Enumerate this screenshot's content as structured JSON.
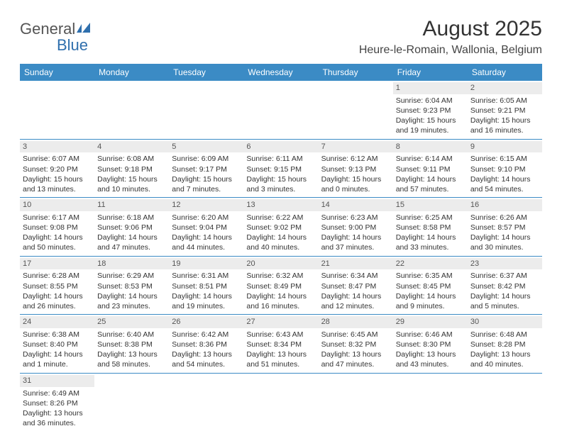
{
  "logo": {
    "text1": "Genera",
    "text2": "l",
    "text3": "Blue"
  },
  "header": {
    "month_title": "August 2025",
    "location": "Heure-le-Romain, Wallonia, Belgium"
  },
  "day_headers": [
    "Sunday",
    "Monday",
    "Tuesday",
    "Wednesday",
    "Thursday",
    "Friday",
    "Saturday"
  ],
  "colors": {
    "header_bg": "#3b8bc5",
    "header_text": "#ffffff",
    "daynum_bg": "#ececec",
    "border": "#3b8bc5"
  },
  "weeks": [
    [
      {
        "blank": true
      },
      {
        "blank": true
      },
      {
        "blank": true
      },
      {
        "blank": true
      },
      {
        "blank": true
      },
      {
        "day": "1",
        "sunrise": "Sunrise: 6:04 AM",
        "sunset": "Sunset: 9:23 PM",
        "daylight1": "Daylight: 15 hours",
        "daylight2": "and 19 minutes."
      },
      {
        "day": "2",
        "sunrise": "Sunrise: 6:05 AM",
        "sunset": "Sunset: 9:21 PM",
        "daylight1": "Daylight: 15 hours",
        "daylight2": "and 16 minutes."
      }
    ],
    [
      {
        "day": "3",
        "sunrise": "Sunrise: 6:07 AM",
        "sunset": "Sunset: 9:20 PM",
        "daylight1": "Daylight: 15 hours",
        "daylight2": "and 13 minutes."
      },
      {
        "day": "4",
        "sunrise": "Sunrise: 6:08 AM",
        "sunset": "Sunset: 9:18 PM",
        "daylight1": "Daylight: 15 hours",
        "daylight2": "and 10 minutes."
      },
      {
        "day": "5",
        "sunrise": "Sunrise: 6:09 AM",
        "sunset": "Sunset: 9:17 PM",
        "daylight1": "Daylight: 15 hours",
        "daylight2": "and 7 minutes."
      },
      {
        "day": "6",
        "sunrise": "Sunrise: 6:11 AM",
        "sunset": "Sunset: 9:15 PM",
        "daylight1": "Daylight: 15 hours",
        "daylight2": "and 3 minutes."
      },
      {
        "day": "7",
        "sunrise": "Sunrise: 6:12 AM",
        "sunset": "Sunset: 9:13 PM",
        "daylight1": "Daylight: 15 hours",
        "daylight2": "and 0 minutes."
      },
      {
        "day": "8",
        "sunrise": "Sunrise: 6:14 AM",
        "sunset": "Sunset: 9:11 PM",
        "daylight1": "Daylight: 14 hours",
        "daylight2": "and 57 minutes."
      },
      {
        "day": "9",
        "sunrise": "Sunrise: 6:15 AM",
        "sunset": "Sunset: 9:10 PM",
        "daylight1": "Daylight: 14 hours",
        "daylight2": "and 54 minutes."
      }
    ],
    [
      {
        "day": "10",
        "sunrise": "Sunrise: 6:17 AM",
        "sunset": "Sunset: 9:08 PM",
        "daylight1": "Daylight: 14 hours",
        "daylight2": "and 50 minutes."
      },
      {
        "day": "11",
        "sunrise": "Sunrise: 6:18 AM",
        "sunset": "Sunset: 9:06 PM",
        "daylight1": "Daylight: 14 hours",
        "daylight2": "and 47 minutes."
      },
      {
        "day": "12",
        "sunrise": "Sunrise: 6:20 AM",
        "sunset": "Sunset: 9:04 PM",
        "daylight1": "Daylight: 14 hours",
        "daylight2": "and 44 minutes."
      },
      {
        "day": "13",
        "sunrise": "Sunrise: 6:22 AM",
        "sunset": "Sunset: 9:02 PM",
        "daylight1": "Daylight: 14 hours",
        "daylight2": "and 40 minutes."
      },
      {
        "day": "14",
        "sunrise": "Sunrise: 6:23 AM",
        "sunset": "Sunset: 9:00 PM",
        "daylight1": "Daylight: 14 hours",
        "daylight2": "and 37 minutes."
      },
      {
        "day": "15",
        "sunrise": "Sunrise: 6:25 AM",
        "sunset": "Sunset: 8:58 PM",
        "daylight1": "Daylight: 14 hours",
        "daylight2": "and 33 minutes."
      },
      {
        "day": "16",
        "sunrise": "Sunrise: 6:26 AM",
        "sunset": "Sunset: 8:57 PM",
        "daylight1": "Daylight: 14 hours",
        "daylight2": "and 30 minutes."
      }
    ],
    [
      {
        "day": "17",
        "sunrise": "Sunrise: 6:28 AM",
        "sunset": "Sunset: 8:55 PM",
        "daylight1": "Daylight: 14 hours",
        "daylight2": "and 26 minutes."
      },
      {
        "day": "18",
        "sunrise": "Sunrise: 6:29 AM",
        "sunset": "Sunset: 8:53 PM",
        "daylight1": "Daylight: 14 hours",
        "daylight2": "and 23 minutes."
      },
      {
        "day": "19",
        "sunrise": "Sunrise: 6:31 AM",
        "sunset": "Sunset: 8:51 PM",
        "daylight1": "Daylight: 14 hours",
        "daylight2": "and 19 minutes."
      },
      {
        "day": "20",
        "sunrise": "Sunrise: 6:32 AM",
        "sunset": "Sunset: 8:49 PM",
        "daylight1": "Daylight: 14 hours",
        "daylight2": "and 16 minutes."
      },
      {
        "day": "21",
        "sunrise": "Sunrise: 6:34 AM",
        "sunset": "Sunset: 8:47 PM",
        "daylight1": "Daylight: 14 hours",
        "daylight2": "and 12 minutes."
      },
      {
        "day": "22",
        "sunrise": "Sunrise: 6:35 AM",
        "sunset": "Sunset: 8:45 PM",
        "daylight1": "Daylight: 14 hours",
        "daylight2": "and 9 minutes."
      },
      {
        "day": "23",
        "sunrise": "Sunrise: 6:37 AM",
        "sunset": "Sunset: 8:42 PM",
        "daylight1": "Daylight: 14 hours",
        "daylight2": "and 5 minutes."
      }
    ],
    [
      {
        "day": "24",
        "sunrise": "Sunrise: 6:38 AM",
        "sunset": "Sunset: 8:40 PM",
        "daylight1": "Daylight: 14 hours",
        "daylight2": "and 1 minute."
      },
      {
        "day": "25",
        "sunrise": "Sunrise: 6:40 AM",
        "sunset": "Sunset: 8:38 PM",
        "daylight1": "Daylight: 13 hours",
        "daylight2": "and 58 minutes."
      },
      {
        "day": "26",
        "sunrise": "Sunrise: 6:42 AM",
        "sunset": "Sunset: 8:36 PM",
        "daylight1": "Daylight: 13 hours",
        "daylight2": "and 54 minutes."
      },
      {
        "day": "27",
        "sunrise": "Sunrise: 6:43 AM",
        "sunset": "Sunset: 8:34 PM",
        "daylight1": "Daylight: 13 hours",
        "daylight2": "and 51 minutes."
      },
      {
        "day": "28",
        "sunrise": "Sunrise: 6:45 AM",
        "sunset": "Sunset: 8:32 PM",
        "daylight1": "Daylight: 13 hours",
        "daylight2": "and 47 minutes."
      },
      {
        "day": "29",
        "sunrise": "Sunrise: 6:46 AM",
        "sunset": "Sunset: 8:30 PM",
        "daylight1": "Daylight: 13 hours",
        "daylight2": "and 43 minutes."
      },
      {
        "day": "30",
        "sunrise": "Sunrise: 6:48 AM",
        "sunset": "Sunset: 8:28 PM",
        "daylight1": "Daylight: 13 hours",
        "daylight2": "and 40 minutes."
      }
    ],
    [
      {
        "day": "31",
        "sunrise": "Sunrise: 6:49 AM",
        "sunset": "Sunset: 8:26 PM",
        "daylight1": "Daylight: 13 hours",
        "daylight2": "and 36 minutes."
      },
      {
        "blank": true
      },
      {
        "blank": true
      },
      {
        "blank": true
      },
      {
        "blank": true
      },
      {
        "blank": true
      },
      {
        "blank": true
      }
    ]
  ]
}
